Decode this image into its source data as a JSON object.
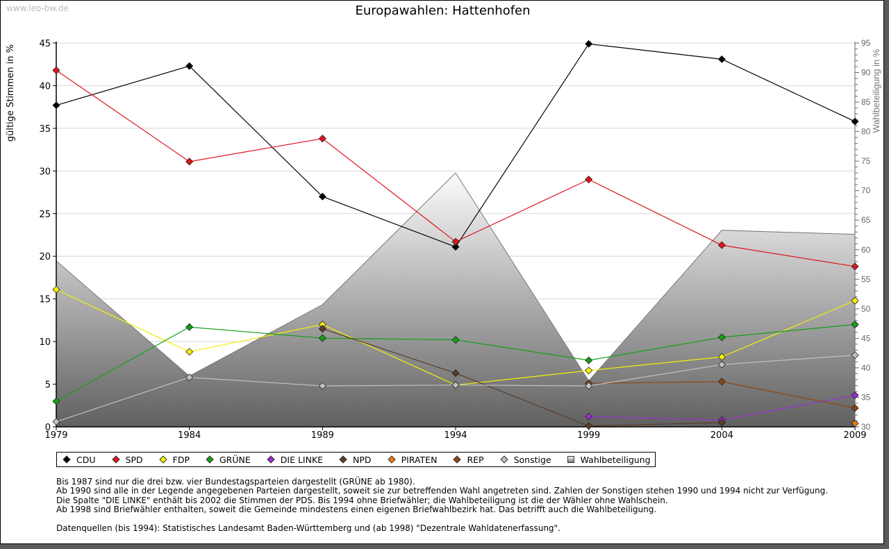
{
  "watermark": "www.leo-bw.de",
  "chart_data": {
    "type": "line",
    "title": "Europawahlen: Hattenhofen",
    "ylabel": "gültige Stimmen in %",
    "ylabel_right": "Wahlbeteiligung in %",
    "x": [
      1979,
      1984,
      1989,
      1994,
      1999,
      2004,
      2009
    ],
    "x_tick_labels": [
      "1979",
      "1984",
      "1989",
      "1994",
      "1999",
      "2004",
      "2009"
    ],
    "ylim": [
      0,
      45
    ],
    "y_ticks": [
      0,
      5,
      10,
      15,
      20,
      25,
      30,
      35,
      40,
      45
    ],
    "ylim_right": [
      30,
      95
    ],
    "y_ticks_right": [
      30,
      35,
      40,
      45,
      50,
      55,
      60,
      65,
      70,
      75,
      80,
      85,
      90,
      95
    ],
    "grid": true,
    "legend_placement": "bottom",
    "series": [
      {
        "name": "CDU",
        "color": "#000000",
        "values": [
          37.7,
          42.3,
          27.0,
          21.1,
          44.9,
          43.1,
          35.8
        ]
      },
      {
        "name": "SPD",
        "color": "#e0141e",
        "values": [
          41.8,
          31.1,
          33.8,
          21.7,
          29.0,
          21.3,
          18.8
        ]
      },
      {
        "name": "FDP",
        "color": "#f5f00a",
        "values": [
          16.1,
          8.8,
          12.0,
          4.9,
          6.6,
          8.2,
          14.8
        ]
      },
      {
        "name": "GRÜNE",
        "color": "#14a014",
        "values": [
          3.0,
          11.7,
          10.4,
          10.2,
          7.8,
          10.5,
          12.0
        ]
      },
      {
        "name": "DIE LINKE",
        "color": "#9b30d0",
        "values": [
          null,
          null,
          null,
          null,
          1.2,
          0.8,
          3.7
        ]
      },
      {
        "name": "NPD",
        "color": "#5a3c28",
        "values": [
          null,
          null,
          11.5,
          6.3,
          0.1,
          0.5,
          null
        ]
      },
      {
        "name": "PIRATEN",
        "color": "#f07814",
        "values": [
          null,
          null,
          null,
          null,
          null,
          null,
          0.4
        ]
      },
      {
        "name": "REP",
        "color": "#8c4614",
        "values": [
          null,
          null,
          null,
          null,
          5.1,
          5.3,
          2.2
        ]
      },
      {
        "name": "Sonstige",
        "color": "#c0c0c0",
        "values": [
          0.6,
          5.8,
          4.8,
          4.9,
          4.8,
          7.3,
          8.4
        ]
      }
    ],
    "area_series": {
      "name": "Wahlbeteiligung",
      "axis": "right",
      "values": [
        58.1,
        38.6,
        50.7,
        73.0,
        37.8,
        63.3,
        62.6
      ]
    }
  },
  "notes": [
    "Bis 1987 sind nur die drei bzw. vier Bundestagsparteien dargestellt (GRÜNE ab 1980).",
    "Ab 1990 sind alle in der Legende angegebenen Parteien dargestellt, soweit sie zur betreffenden Wahl angetreten sind. Zahlen der Sonstigen stehen 1990 und 1994 nicht zur Verfügung.",
    "Die Spalte \"DIE LINKE\" enthält bis 2002 die Stimmen der PDS. Bis 1994 ohne Briefwähler; die Wahlbeteiligung ist die der Wähler ohne Wahlschein.",
    "Ab 1998 sind Briefwähler enthalten, soweit die Gemeinde mindestens einen eigenen Briefwahlbezirk hat. Das betrifft auch die Wahlbeteiligung."
  ],
  "source": "Datenquellen (bis 1994): Statistisches Landesamt Baden-Württemberg und (ab 1998) \"Dezentrale Wahldatenerfassung\"."
}
